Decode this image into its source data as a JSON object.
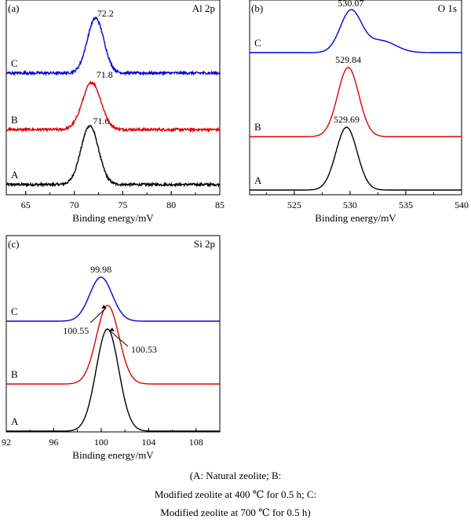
{
  "chart_data": [
    {
      "type": "line",
      "panel": "(a)",
      "title": "Al 2p",
      "xlabel": "Binding energy/mV",
      "xlim": [
        63,
        85
      ],
      "xticks": [
        65,
        70,
        75,
        80,
        85
      ],
      "series": [
        {
          "name": "A",
          "color": "#000000",
          "peak_x": 71.6,
          "peak_label": "71.6",
          "baseline": 0,
          "height": 75,
          "sigma": 0.9,
          "noise": 1.6
        },
        {
          "name": "B",
          "color": "#dd0000",
          "peak_x": 71.8,
          "peak_label": "71.8",
          "baseline": 70,
          "height": 60,
          "sigma": 0.95,
          "noise": 1.6
        },
        {
          "name": "C",
          "color": "#0000dd",
          "peak_x": 72.2,
          "peak_label": "72.2",
          "baseline": 142,
          "height": 70,
          "sigma": 0.85,
          "noise": 1.6
        }
      ]
    },
    {
      "type": "line",
      "panel": "(b)",
      "title": "O 1s",
      "xlabel": "Binding energy/mV",
      "xlim": [
        521,
        540
      ],
      "xticks": [
        525,
        530,
        535,
        540
      ],
      "series": [
        {
          "name": "A",
          "color": "#000000",
          "peak_x": 529.69,
          "peak_label": "529.69",
          "baseline": 0,
          "height": 80,
          "sigma": 0.95
        },
        {
          "name": "B",
          "color": "#dd0000",
          "peak_x": 529.84,
          "peak_label": "529.84",
          "baseline": 68,
          "height": 88,
          "sigma": 0.95
        },
        {
          "name": "C",
          "color": "#0000dd",
          "peak_x": 530.07,
          "peak_label": "530.07",
          "baseline": 175,
          "height": 53,
          "sigma": 0.95,
          "shoulder_x": 532.8,
          "shoulder_height": 15,
          "shoulder_sigma": 1.3
        }
      ]
    },
    {
      "type": "line",
      "panel": "(c)",
      "title": "Si 2p",
      "xlabel": "Binding energy/mV",
      "xlim": [
        92,
        110
      ],
      "xticks": [
        92,
        96,
        100,
        104,
        108
      ],
      "series": [
        {
          "name": "A",
          "color": "#000000",
          "peak_x": 100.53,
          "peak_label": "100.53",
          "baseline": 0,
          "height": 130,
          "sigma": 0.95
        },
        {
          "name": "B",
          "color": "#dd0000",
          "peak_x": 100.55,
          "peak_label": "100.55",
          "baseline": 60,
          "height": 100,
          "sigma": 0.95
        },
        {
          "name": "C",
          "color": "#0000dd",
          "peak_x": 99.98,
          "peak_label": "99.98",
          "baseline": 140,
          "height": 56,
          "sigma": 0.95
        }
      ]
    }
  ],
  "caption": {
    "line1": "(A:   Natural   zeolite;   B:",
    "line2": "Modified zeolite at 400 ℃ for 0.5 h; C:",
    "line3": "Modified zeolite at 700 ℃ for 0.5 h)"
  }
}
